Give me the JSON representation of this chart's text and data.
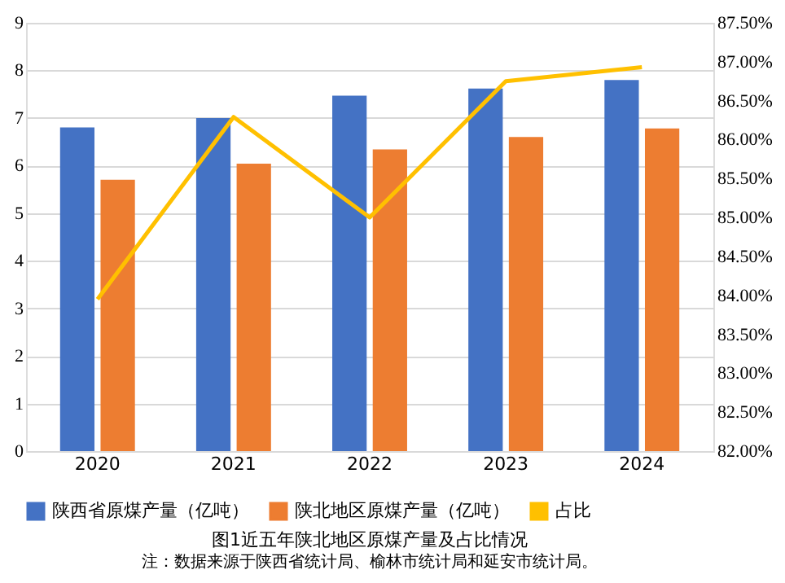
{
  "chart_data": {
    "type": "bar",
    "title": "图1近五年陕北地区原煤产量及占比情况",
    "annotations": [
      "注：数据来源于陕西省统计局、榆林市统计局和延安市统计局。"
    ],
    "categories": [
      "2020",
      "2021",
      "2022",
      "2023",
      "2024"
    ],
    "series": [
      {
        "name": "陕西省原煤产量（亿吨）",
        "color": "#4472c4",
        "values": [
          6.8,
          7.0,
          7.47,
          7.62,
          7.8
        ]
      },
      {
        "name": "陕北地区原煤产量（亿吨）",
        "color": "#ed7d31",
        "values": [
          5.7,
          6.04,
          6.34,
          6.6,
          6.78
        ]
      },
      {
        "name": "占比",
        "type": "line",
        "axis": "y2",
        "color": "#ffc000",
        "values": [
          83.95,
          86.29,
          85.0,
          86.75,
          86.93
        ]
      }
    ],
    "ylim": [
      0,
      9
    ],
    "yticks": [
      0,
      1,
      2,
      3,
      4,
      5,
      6,
      7,
      8,
      9
    ],
    "y2lim": [
      82,
      87.5
    ],
    "y2ticks": [
      {
        "value": 82,
        "label": "82.00%"
      },
      {
        "value": 82.5,
        "label": "82.50%"
      },
      {
        "value": 83,
        "label": "83.00%"
      },
      {
        "value": 83.5,
        "label": "83.50%"
      },
      {
        "value": 84,
        "label": "84.00%"
      },
      {
        "value": 84.5,
        "label": "84.50%"
      },
      {
        "value": 85,
        "label": "85.00%"
      },
      {
        "value": 85.5,
        "label": "85.50%"
      },
      {
        "value": 86,
        "label": "86.00%"
      },
      {
        "value": 86.5,
        "label": "86.50%"
      },
      {
        "value": 87,
        "label": "87.00%"
      },
      {
        "value": 87.5,
        "label": "87.50%"
      }
    ],
    "grid": "y",
    "legend": "bottom",
    "marker": "none",
    "line_style": "solid"
  }
}
